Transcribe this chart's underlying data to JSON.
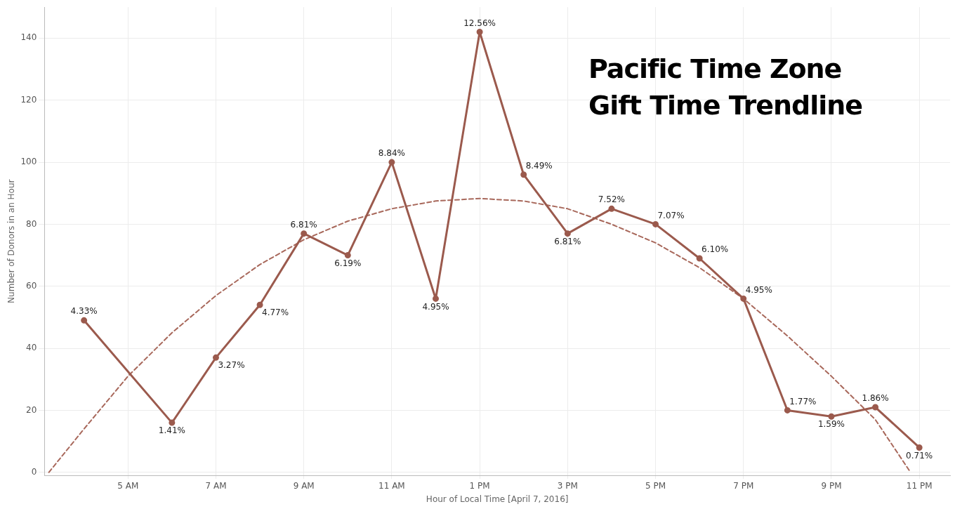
{
  "chart_data": {
    "type": "line",
    "title": "Pacific Time Zone Gift Time Trendline",
    "xlabel": "Hour of Local Time [April 7, 2016]",
    "ylabel": "Number of Donors in an Hour",
    "xlim": [
      "2016-04-07T03:06",
      "2016-04-07T23:42"
    ],
    "ylim": [
      -1,
      150
    ],
    "xticks": [
      {
        "value": "2016-04-07T05:00",
        "label": "5 AM"
      },
      {
        "value": "2016-04-07T07:00",
        "label": "7 AM"
      },
      {
        "value": "2016-04-07T09:00",
        "label": "9 AM"
      },
      {
        "value": "2016-04-07T11:00",
        "label": "11 AM"
      },
      {
        "value": "2016-04-07T13:00",
        "label": "1 PM"
      },
      {
        "value": "2016-04-07T15:00",
        "label": "3 PM"
      },
      {
        "value": "2016-04-07T17:00",
        "label": "5 PM"
      },
      {
        "value": "2016-04-07T19:00",
        "label": "7 PM"
      },
      {
        "value": "2016-04-07T21:00",
        "label": "9 PM"
      },
      {
        "value": "2016-04-07T23:00",
        "label": "11 PM"
      }
    ],
    "yticks": [
      0,
      20,
      40,
      60,
      80,
      100,
      120,
      140
    ],
    "grid": true,
    "legend": false,
    "series": [
      {
        "type": "line",
        "color": "#9b5a4d",
        "marker": "circle",
        "line_style": "solid",
        "x": [
          "2016-04-07T04:00",
          "2016-04-07T06:00",
          "2016-04-07T07:00",
          "2016-04-07T08:00",
          "2016-04-07T09:00",
          "2016-04-07T10:00",
          "2016-04-07T11:00",
          "2016-04-07T12:00",
          "2016-04-07T13:00",
          "2016-04-07T14:00",
          "2016-04-07T15:00",
          "2016-04-07T16:00",
          "2016-04-07T17:00",
          "2016-04-07T18:00",
          "2016-04-07T19:00",
          "2016-04-07T20:00",
          "2016-04-07T21:00",
          "2016-04-07T22:00",
          "2016-04-07T23:00"
        ],
        "values": [
          49,
          16,
          37,
          54,
          77,
          70,
          100,
          56,
          142,
          96,
          77,
          85,
          80,
          69,
          56,
          20,
          18,
          21,
          8
        ]
      },
      {
        "type": "line",
        "color": "#a8685b",
        "marker": "none",
        "line_style": "dashed",
        "x": [
          "2016-04-07T03:12",
          "2016-04-07T04:00",
          "2016-04-07T05:00",
          "2016-04-07T06:00",
          "2016-04-07T07:00",
          "2016-04-07T08:00",
          "2016-04-07T09:00",
          "2016-04-07T10:00",
          "2016-04-07T11:00",
          "2016-04-07T12:00",
          "2016-04-07T13:00",
          "2016-04-07T14:00",
          "2016-04-07T15:00",
          "2016-04-07T16:00",
          "2016-04-07T17:00",
          "2016-04-07T18:00",
          "2016-04-07T19:00",
          "2016-04-07T20:00",
          "2016-04-07T21:00",
          "2016-04-07T22:00",
          "2016-04-07T22:48"
        ],
        "values": [
          0,
          14,
          31,
          45,
          57,
          67,
          75,
          81,
          85,
          87.5,
          88.3,
          87.5,
          85,
          80,
          74,
          66,
          56,
          44,
          31,
          17,
          0
        ]
      }
    ],
    "annotations": [
      {
        "text": "4.33%",
        "x": "2016-04-07T04:00",
        "y": 49
      },
      {
        "text": "1.41%",
        "x": "2016-04-07T06:00",
        "y": 16
      },
      {
        "text": "3.27%",
        "x": "2016-04-07T07:00",
        "y": 37
      },
      {
        "text": "4.77%",
        "x": "2016-04-07T08:00",
        "y": 54
      },
      {
        "text": "6.81%",
        "x": "2016-04-07T09:00",
        "y": 77
      },
      {
        "text": "6.19%",
        "x": "2016-04-07T10:00",
        "y": 70
      },
      {
        "text": "8.84%",
        "x": "2016-04-07T11:00",
        "y": 100
      },
      {
        "text": "4.95%",
        "x": "2016-04-07T12:00",
        "y": 56
      },
      {
        "text": "12.56%",
        "x": "2016-04-07T13:00",
        "y": 142
      },
      {
        "text": "8.49%",
        "x": "2016-04-07T14:00",
        "y": 96
      },
      {
        "text": "6.81%",
        "x": "2016-04-07T15:00",
        "y": 77
      },
      {
        "text": "7.52%",
        "x": "2016-04-07T16:00",
        "y": 85
      },
      {
        "text": "7.07%",
        "x": "2016-04-07T17:00",
        "y": 80
      },
      {
        "text": "6.10%",
        "x": "2016-04-07T18:00",
        "y": 69
      },
      {
        "text": "4.95%",
        "x": "2016-04-07T19:00",
        "y": 56
      },
      {
        "text": "1.77%",
        "x": "2016-04-07T20:00",
        "y": 20
      },
      {
        "text": "1.59%",
        "x": "2016-04-07T21:00",
        "y": 18
      },
      {
        "text": "1.86%",
        "x": "2016-04-07T22:00",
        "y": 21
      },
      {
        "text": "0.71%",
        "x": "2016-04-07T23:00",
        "y": 8
      }
    ]
  }
}
